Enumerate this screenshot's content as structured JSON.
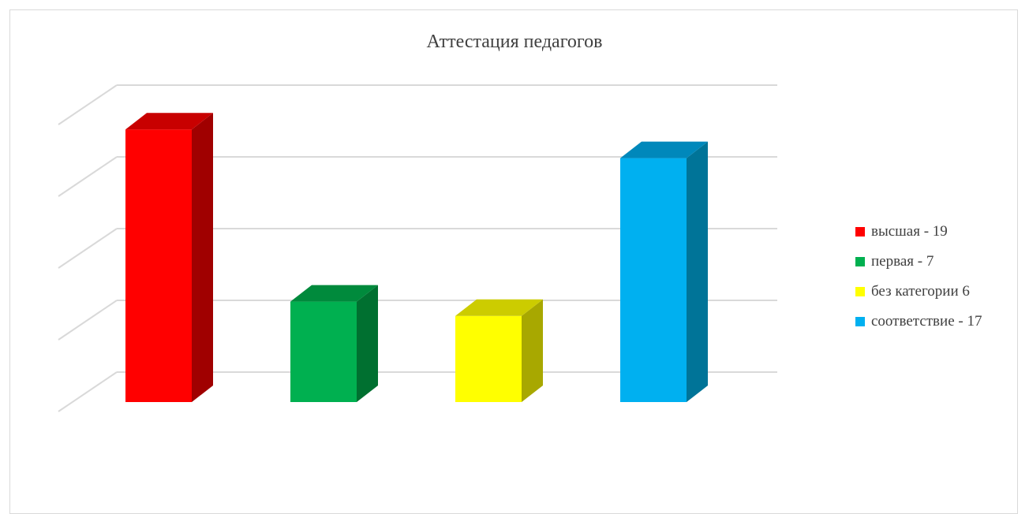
{
  "chart_data": {
    "type": "bar",
    "title": "Аттестация педагогов",
    "categories": [
      "высшая - 19",
      "первая - 7",
      "без категории 6",
      "соответствие - 17"
    ],
    "values": [
      19,
      7,
      6,
      17
    ],
    "colors": [
      "#ff0000",
      "#00b050",
      "#ffff00",
      "#00b0f0"
    ],
    "side_colors": [
      "#a00000",
      "#007030",
      "#a8a800",
      "#007498"
    ],
    "top_colors": [
      "#c80000",
      "#008a3c",
      "#cccc00",
      "#0088bb"
    ],
    "ylim": [
      0,
      20
    ],
    "grid": true,
    "legend_position": "right",
    "three_d": true
  }
}
